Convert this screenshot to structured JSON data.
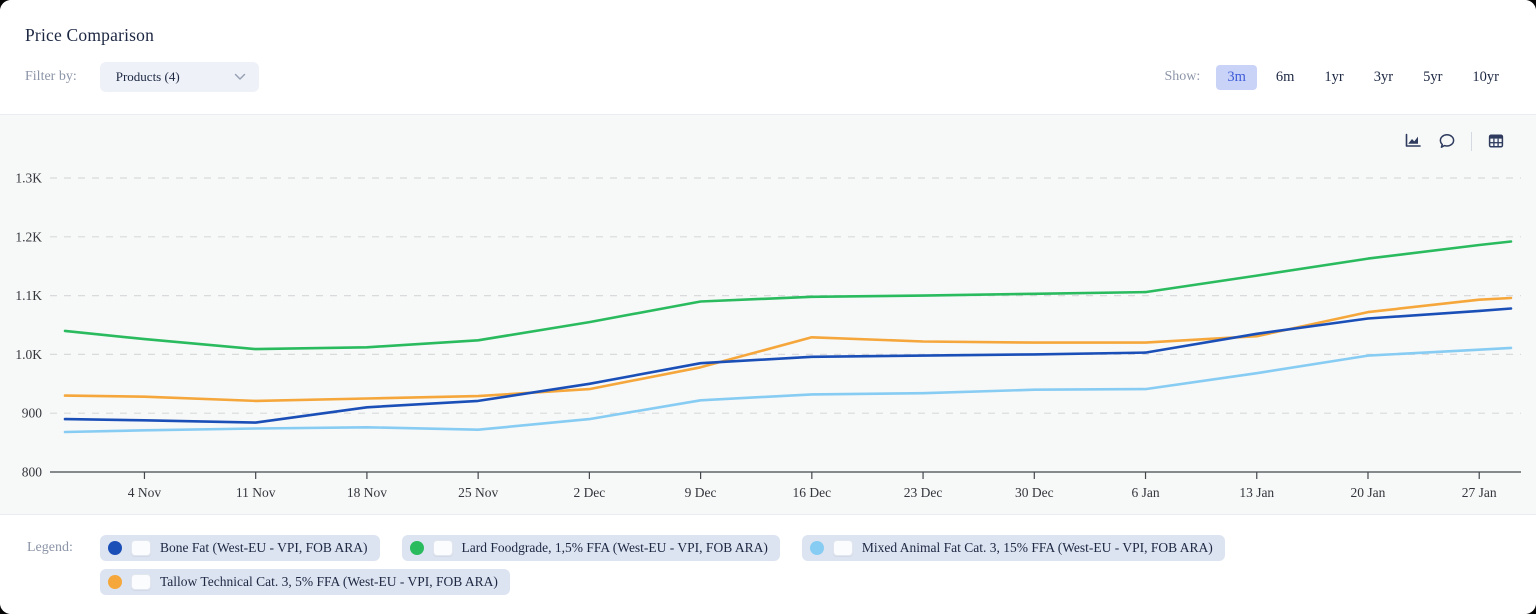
{
  "header": {
    "title": "Price Comparison",
    "filter": {
      "label": "Filter by:",
      "value": "Products (4)"
    },
    "show": {
      "label": "Show:",
      "options": [
        "3m",
        "6m",
        "1yr",
        "3yr",
        "5yr",
        "10yr"
      ],
      "selected": "3m",
      "active_bg": "#c9d3f8",
      "active_text": "#3f5bd8"
    }
  },
  "toolbar": {
    "icons": [
      "area-chart-icon",
      "comment-icon",
      "table-icon"
    ]
  },
  "chart_data": {
    "type": "line",
    "title": "",
    "xlabel": "",
    "ylabel": "",
    "x_dates": [
      "30 Oct",
      "4 Nov",
      "11 Nov",
      "18 Nov",
      "25 Nov",
      "2 Dec",
      "9 Dec",
      "16 Dec",
      "23 Dec",
      "30 Dec",
      "6 Jan",
      "13 Jan",
      "20 Jan",
      "27 Jan",
      "29 Jan"
    ],
    "x_days": [
      0,
      5,
      12,
      19,
      26,
      33,
      40,
      47,
      54,
      61,
      68,
      75,
      82,
      89,
      91
    ],
    "x_tick_labels": [
      "4 Nov",
      "11 Nov",
      "18 Nov",
      "25 Nov",
      "2 Dec",
      "9 Dec",
      "16 Dec",
      "23 Dec",
      "30 Dec",
      "6 Jan",
      "13 Jan",
      "20 Jan",
      "27 Jan"
    ],
    "x_tick_days": [
      5,
      12,
      19,
      26,
      33,
      40,
      47,
      54,
      61,
      68,
      75,
      82,
      89
    ],
    "ylim": [
      800,
      1300
    ],
    "y_ticks": [
      800,
      900,
      1000,
      1100,
      1200,
      1300
    ],
    "y_tick_labels": [
      "800",
      "900",
      "1.0K",
      "1.1K",
      "1.2K",
      "1.3K"
    ],
    "grid": "horizontal-dashed",
    "legend_position": "bottom",
    "series": [
      {
        "name": "Bone Fat (West-EU - VPI, FOB ARA)",
        "color": "#1b4fb8",
        "values": [
          890,
          888,
          884,
          910,
          921,
          950,
          985,
          996,
          998,
          1000,
          1003,
          1035,
          1061,
          1074,
          1078
        ]
      },
      {
        "name": "Lard Foodgrade, 1,5% FFA (West-EU - VPI, FOB ARA)",
        "color": "#2abb5f",
        "values": [
          1040,
          1026,
          1009,
          1012,
          1024,
          1055,
          1090,
          1098,
          1100,
          1103,
          1106,
          1134,
          1163,
          1186,
          1192
        ]
      },
      {
        "name": "Mixed Animal Fat Cat. 3, 15% FFA (West-EU - VPI, FOB ARA)",
        "color": "#87ccf3",
        "values": [
          868,
          871,
          874,
          876,
          872,
          890,
          922,
          932,
          934,
          940,
          941,
          968,
          998,
          1008,
          1011
        ]
      },
      {
        "name": "Tallow Technical Cat. 3, 5% FFA (West-EU - VPI, FOB ARA)",
        "color": "#f5a73b",
        "values": [
          930,
          928,
          921,
          925,
          929,
          941,
          978,
          1029,
          1022,
          1020,
          1020,
          1031,
          1072,
          1093,
          1096
        ]
      }
    ]
  },
  "legend": {
    "label": "Legend:",
    "items": [
      {
        "label": "Bone Fat (West-EU - VPI, FOB ARA)",
        "color": "#1b4fb8",
        "checked": false
      },
      {
        "label": "Lard Foodgrade, 1,5% FFA (West-EU - VPI, FOB ARA)",
        "color": "#2abb5f",
        "checked": false
      },
      {
        "label": "Mixed Animal Fat Cat. 3, 15% FFA (West-EU - VPI, FOB ARA)",
        "color": "#87ccf3",
        "checked": false
      },
      {
        "label": "Tallow Technical Cat. 3, 5% FFA (West-EU - VPI, FOB ARA)",
        "color": "#f5a73b",
        "checked": false
      }
    ]
  }
}
